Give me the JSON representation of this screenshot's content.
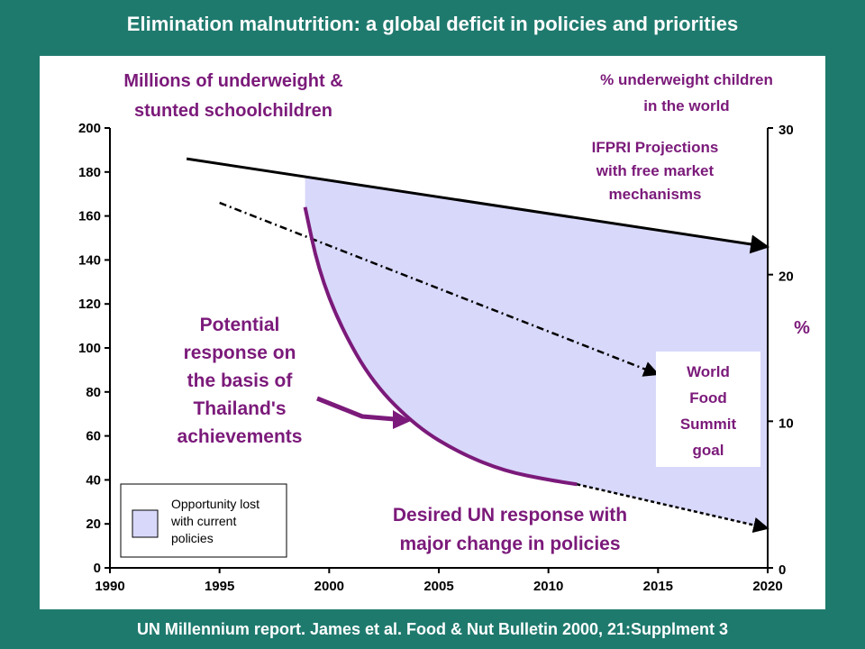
{
  "title": "Elimination malnutrition: a global deficit in policies and priorities",
  "footer": "UN Millennium report. James et al. Food & Nut Bulletin 2000, 21:Supplment 3",
  "colors": {
    "background": "#1f7a6e",
    "purple": "#7b1a7a",
    "shade": "#d8d8fb"
  },
  "chart_data": {
    "type": "line",
    "xlim": [
      1990,
      2020
    ],
    "ylim_left": [
      0,
      200
    ],
    "ylim_right": [
      0,
      30
    ],
    "x_ticks": [
      "1990",
      "1995",
      "2000",
      "2005",
      "2010",
      "2015",
      "2020"
    ],
    "y_left_ticks": [
      "0",
      "20",
      "40",
      "60",
      "80",
      "100",
      "120",
      "140",
      "160",
      "180",
      "200"
    ],
    "y_right_ticks": [
      "0",
      "10",
      "20",
      "30"
    ],
    "left_axis_label": [
      "Millions of underweight &",
      "stunted schoolchildren"
    ],
    "right_axis_label": [
      "% underweight children",
      "in the world"
    ],
    "right_axis_unit": "%",
    "series": [
      {
        "name": "IFPRI Projections with free market mechanisms",
        "style": "solid-arrow",
        "x": [
          1993.5,
          2020
        ],
        "y": [
          186,
          146
        ]
      },
      {
        "name": "World Food Summit goal",
        "style": "dash-dot-arrow",
        "x": [
          1995,
          2015
        ],
        "y": [
          166,
          88
        ]
      },
      {
        "name": "Potential response on the basis of Thailand's achievements",
        "style": "purple-curve",
        "x": [
          1998.9,
          1999.5,
          2000.5,
          2002,
          2004,
          2006,
          2008,
          2010,
          2011.3
        ],
        "y": [
          164,
          136,
          110,
          84,
          64,
          52,
          44,
          40,
          38
        ]
      },
      {
        "name": "Desired UN response with major change in policies",
        "style": "dotted-arrow",
        "x": [
          2011.3,
          2020
        ],
        "y": [
          38,
          18
        ]
      }
    ],
    "annotations": {
      "ifpri": [
        "IFPRI Projections",
        "with free market",
        "mechanisms"
      ],
      "wfs": [
        "World",
        "Food",
        "Summit",
        "goal"
      ],
      "thailand": [
        "Potential",
        "response on",
        "the basis of",
        "Thailand's",
        "achievements"
      ],
      "desired": [
        "Desired UN response with",
        "major change in policies"
      ]
    },
    "legend": {
      "position": "bottom-left",
      "lines": [
        "Opportunity lost",
        "with current",
        "policies"
      ]
    }
  }
}
